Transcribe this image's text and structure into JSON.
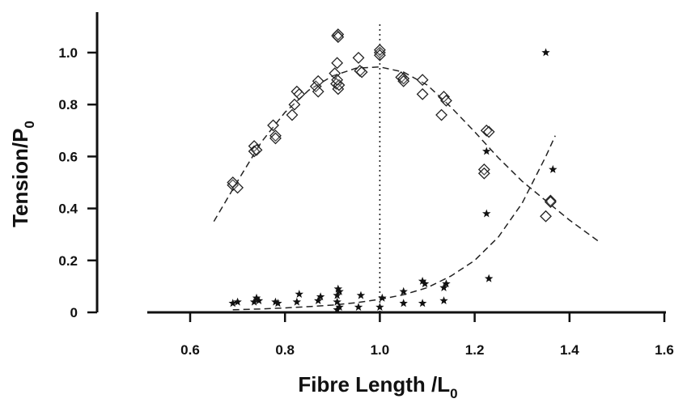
{
  "chart_data": {
    "type": "scatter",
    "xlabel": {
      "main": "Fibre Length /L",
      "sub": "0"
    },
    "ylabel": {
      "main": "Tension/P",
      "sub": "0"
    },
    "xlim": [
      0.5,
      1.6
    ],
    "ylim": [
      0,
      1.1
    ],
    "xticks": [
      0.6,
      0.8,
      1.0,
      1.2,
      1.4,
      1.6
    ],
    "yticks": [
      0,
      0.2,
      0.4,
      0.6,
      0.8,
      1.0
    ],
    "xtick_labels": [
      "0.6",
      "0.8",
      "1.0",
      "1.2",
      "1.4",
      "1.6"
    ],
    "ytick_labels": [
      "0",
      "0.2",
      "0.4",
      "0.6",
      "0.8",
      "1.0"
    ],
    "grid": false,
    "reference_line": {
      "x": 1.0,
      "style": "dotted"
    },
    "series": [
      {
        "marker": "diamond",
        "points": [
          [
            0.69,
            0.49
          ],
          [
            0.69,
            0.5
          ],
          [
            0.7,
            0.48
          ],
          [
            0.735,
            0.64
          ],
          [
            0.735,
            0.62
          ],
          [
            0.74,
            0.625
          ],
          [
            0.775,
            0.72
          ],
          [
            0.78,
            0.68
          ],
          [
            0.78,
            0.67
          ],
          [
            0.815,
            0.76
          ],
          [
            0.82,
            0.8
          ],
          [
            0.825,
            0.85
          ],
          [
            0.83,
            0.84
          ],
          [
            0.865,
            0.87
          ],
          [
            0.87,
            0.89
          ],
          [
            0.87,
            0.85
          ],
          [
            0.905,
            0.92
          ],
          [
            0.908,
            0.88
          ],
          [
            0.91,
            0.96
          ],
          [
            0.912,
            0.86
          ],
          [
            0.914,
            0.875
          ],
          [
            0.91,
            0.895
          ],
          [
            0.91,
            1.065
          ],
          [
            0.912,
            1.07
          ],
          [
            0.912,
            1.06
          ],
          [
            0.955,
            0.98
          ],
          [
            0.958,
            0.93
          ],
          [
            0.962,
            0.925
          ],
          [
            1.0,
            1.0
          ],
          [
            1.0,
            1.01
          ],
          [
            1.0,
            0.99
          ],
          [
            1.045,
            0.905
          ],
          [
            1.05,
            0.9
          ],
          [
            1.05,
            0.89
          ],
          [
            1.09,
            0.895
          ],
          [
            1.09,
            0.84
          ],
          [
            1.13,
            0.76
          ],
          [
            1.135,
            0.83
          ],
          [
            1.14,
            0.815
          ],
          [
            1.22,
            0.55
          ],
          [
            1.22,
            0.535
          ],
          [
            1.225,
            0.7
          ],
          [
            1.23,
            0.695
          ],
          [
            1.35,
            0.37
          ],
          [
            1.36,
            0.43
          ],
          [
            1.36,
            0.425
          ]
        ]
      },
      {
        "marker": "star",
        "points": [
          [
            0.69,
            0.035
          ],
          [
            0.7,
            0.04
          ],
          [
            0.735,
            0.04
          ],
          [
            0.74,
            0.055
          ],
          [
            0.745,
            0.045
          ],
          [
            0.78,
            0.04
          ],
          [
            0.785,
            0.035
          ],
          [
            0.825,
            0.04
          ],
          [
            0.83,
            0.07
          ],
          [
            0.87,
            0.045
          ],
          [
            0.875,
            0.06
          ],
          [
            0.91,
            0.01
          ],
          [
            0.91,
            0.04
          ],
          [
            0.91,
            0.065
          ],
          [
            0.912,
            0.09
          ],
          [
            0.915,
            0.08
          ],
          [
            0.915,
            0.02
          ],
          [
            0.955,
            0.02
          ],
          [
            0.96,
            0.065
          ],
          [
            1.0,
            0.02
          ],
          [
            1.005,
            0.055
          ],
          [
            1.05,
            0.035
          ],
          [
            1.05,
            0.08
          ],
          [
            1.09,
            0.035
          ],
          [
            1.09,
            0.12
          ],
          [
            1.095,
            0.11
          ],
          [
            1.135,
            0.045
          ],
          [
            1.135,
            0.095
          ],
          [
            1.14,
            0.11
          ],
          [
            1.225,
            0.62
          ],
          [
            1.225,
            0.38
          ],
          [
            1.23,
            0.13
          ],
          [
            1.35,
            1.0
          ],
          [
            1.365,
            0.55
          ]
        ]
      }
    ],
    "fit_curves": [
      {
        "style": "dashed",
        "points": [
          [
            0.65,
            0.35
          ],
          [
            0.7,
            0.505
          ],
          [
            0.75,
            0.655
          ],
          [
            0.8,
            0.77
          ],
          [
            0.85,
            0.855
          ],
          [
            0.9,
            0.91
          ],
          [
            0.95,
            0.94
          ],
          [
            1.0,
            0.945
          ],
          [
            1.05,
            0.925
          ],
          [
            1.1,
            0.875
          ],
          [
            1.15,
            0.79
          ],
          [
            1.2,
            0.695
          ],
          [
            1.25,
            0.595
          ],
          [
            1.3,
            0.505
          ],
          [
            1.35,
            0.43
          ],
          [
            1.4,
            0.355
          ],
          [
            1.46,
            0.275
          ]
        ]
      },
      {
        "style": "dashed",
        "points": [
          [
            0.69,
            0.01
          ],
          [
            0.75,
            0.013
          ],
          [
            0.8,
            0.017
          ],
          [
            0.85,
            0.022
          ],
          [
            0.9,
            0.028
          ],
          [
            0.95,
            0.037
          ],
          [
            1.0,
            0.05
          ],
          [
            1.05,
            0.068
          ],
          [
            1.1,
            0.095
          ],
          [
            1.15,
            0.14
          ],
          [
            1.2,
            0.2
          ],
          [
            1.25,
            0.29
          ],
          [
            1.3,
            0.42
          ],
          [
            1.35,
            0.6
          ],
          [
            1.37,
            0.68
          ]
        ]
      }
    ]
  }
}
